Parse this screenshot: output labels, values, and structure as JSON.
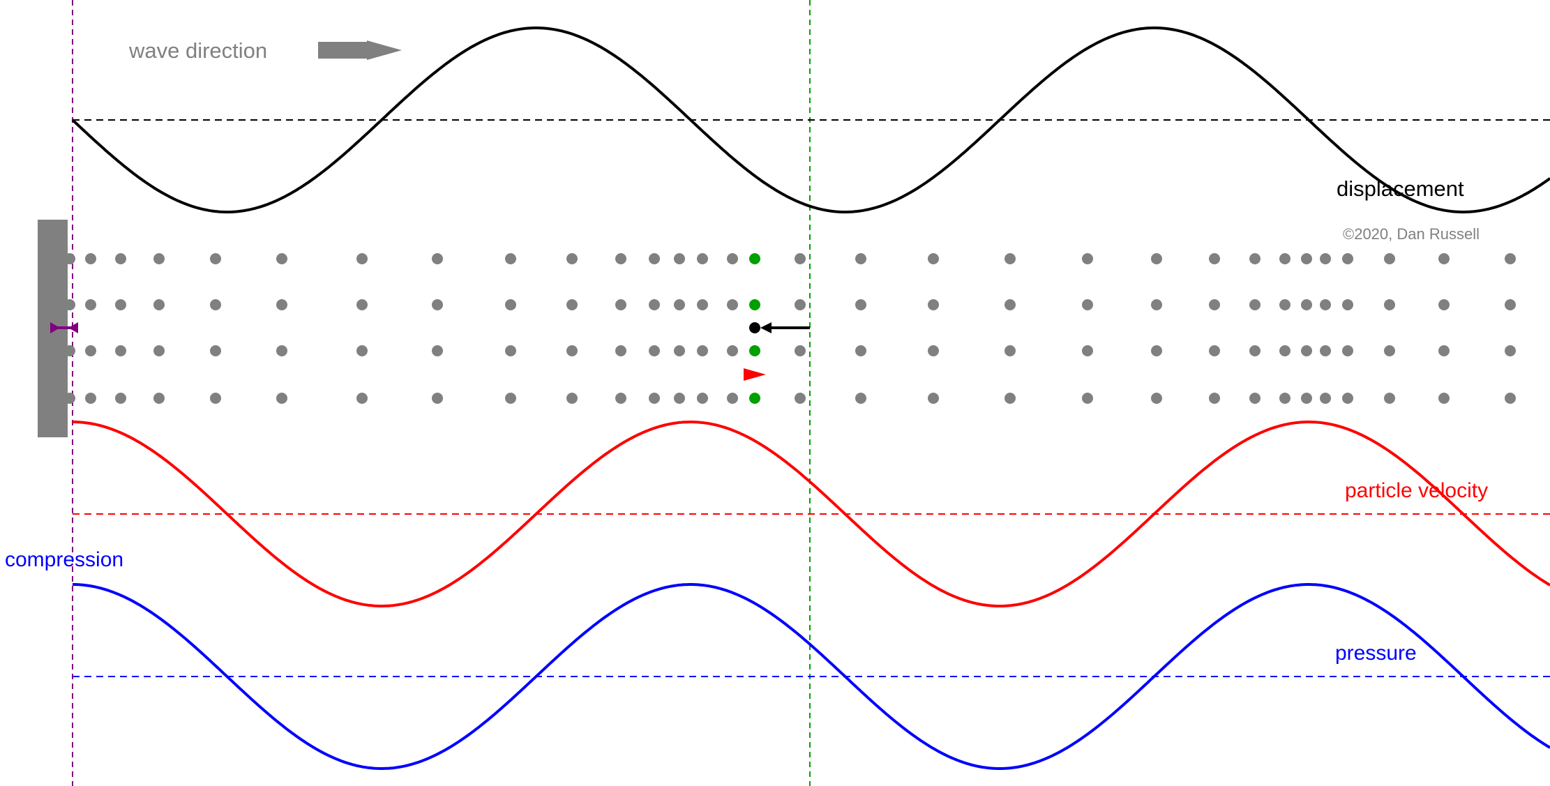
{
  "labels": {
    "wave_direction": "wave direction",
    "displacement": "displacement",
    "copyright": "©2020, Dan Russell",
    "particle_velocity": "particle velocity",
    "compression": "compression",
    "pressure": "pressure"
  },
  "colors": {
    "displacement": "#000000",
    "particle_velocity": "#ff0000",
    "pressure": "#0000ff",
    "particles": "#808080",
    "highlighted_particles": "#00a000",
    "piston": "#808080",
    "piston_marker": "#800080",
    "text_gray": "#808080"
  },
  "icons": {
    "wave_direction_arrow": "right-arrow-icon",
    "piston_marker": "double-headed-arrow-icon",
    "velocity_marker": "red-triangle-icon"
  }
}
